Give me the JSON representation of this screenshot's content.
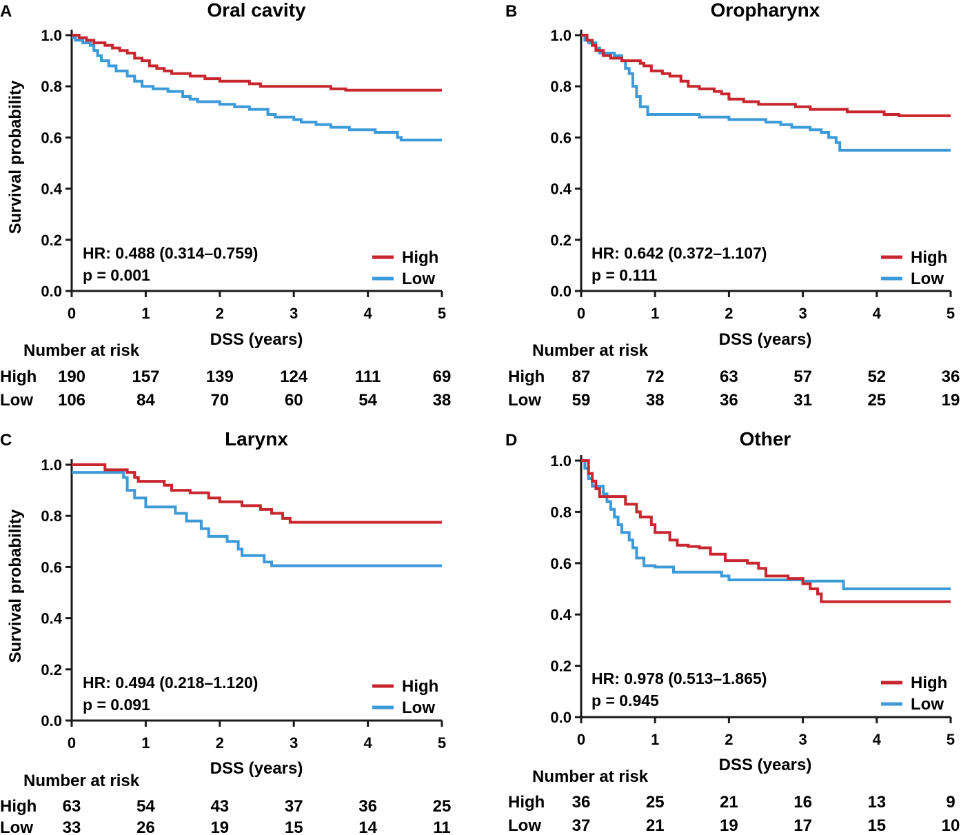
{
  "colors": {
    "high": "#c8262e",
    "low": "#3d9ad9",
    "axis": "#1a1a1a"
  },
  "common": {
    "ylabel": "Survival probability",
    "xlabel": "DSS (years)",
    "risk_title": "Number at risk",
    "high_label": "High",
    "low_label": "Low",
    "x_ticks": [
      "0",
      "1",
      "2",
      "3",
      "4",
      "5"
    ],
    "y_ticks": [
      "0.0",
      "0.2",
      "0.4",
      "0.6",
      "0.8",
      "1.0"
    ]
  },
  "chart_data": [
    {
      "type": "line",
      "panel": "A",
      "title": "Oral cavity",
      "xlabel": "DSS (years)",
      "ylabel": "Survival probability",
      "xlim": [
        0,
        5
      ],
      "ylim": [
        0,
        1
      ],
      "hr_text": "HR: 0.488 (0.314–0.759)",
      "p_text": "p = 0.001",
      "show_ylabel": true,
      "legend_position": "bottom-right",
      "series": [
        {
          "name": "High",
          "steps": [
            [
              0,
              1.0
            ],
            [
              0.1,
              0.99
            ],
            [
              0.2,
              0.98
            ],
            [
              0.3,
              0.97
            ],
            [
              0.45,
              0.96
            ],
            [
              0.55,
              0.95
            ],
            [
              0.65,
              0.94
            ],
            [
              0.75,
              0.93
            ],
            [
              0.85,
              0.91
            ],
            [
              0.95,
              0.9
            ],
            [
              1.05,
              0.88
            ],
            [
              1.15,
              0.87
            ],
            [
              1.25,
              0.86
            ],
            [
              1.35,
              0.85
            ],
            [
              1.6,
              0.84
            ],
            [
              1.8,
              0.83
            ],
            [
              2.0,
              0.82
            ],
            [
              2.4,
              0.81
            ],
            [
              2.55,
              0.8
            ],
            [
              3.5,
              0.79
            ],
            [
              3.7,
              0.785
            ],
            [
              5.0,
              0.785
            ]
          ]
        },
        {
          "name": "Low",
          "steps": [
            [
              0,
              0.99
            ],
            [
              0.05,
              0.98
            ],
            [
              0.15,
              0.97
            ],
            [
              0.25,
              0.96
            ],
            [
              0.3,
              0.94
            ],
            [
              0.35,
              0.92
            ],
            [
              0.4,
              0.9
            ],
            [
              0.5,
              0.88
            ],
            [
              0.6,
              0.86
            ],
            [
              0.75,
              0.84
            ],
            [
              0.85,
              0.82
            ],
            [
              0.95,
              0.8
            ],
            [
              1.1,
              0.79
            ],
            [
              1.3,
              0.78
            ],
            [
              1.5,
              0.76
            ],
            [
              1.6,
              0.75
            ],
            [
              1.7,
              0.74
            ],
            [
              2.0,
              0.73
            ],
            [
              2.2,
              0.72
            ],
            [
              2.4,
              0.71
            ],
            [
              2.65,
              0.69
            ],
            [
              2.75,
              0.68
            ],
            [
              3.0,
              0.67
            ],
            [
              3.1,
              0.66
            ],
            [
              3.3,
              0.65
            ],
            [
              3.5,
              0.64
            ],
            [
              3.75,
              0.63
            ],
            [
              4.1,
              0.62
            ],
            [
              4.35,
              0.62
            ],
            [
              4.4,
              0.6
            ],
            [
              4.45,
              0.59
            ],
            [
              5.0,
              0.59
            ]
          ]
        }
      ],
      "risk": {
        "high": [
          "190",
          "157",
          "139",
          "124",
          "111",
          "69"
        ],
        "low": [
          "106",
          "84",
          "70",
          "60",
          "54",
          "38"
        ]
      }
    },
    {
      "type": "line",
      "panel": "B",
      "title": "Oropharynx",
      "xlabel": "DSS (years)",
      "ylabel": "Survival probability",
      "xlim": [
        0,
        5
      ],
      "ylim": [
        0,
        1
      ],
      "hr_text": "HR: 0.642 (0.372–1.107)",
      "p_text": "p = 0.111",
      "show_ylabel": false,
      "legend_position": "bottom-right",
      "series": [
        {
          "name": "High",
          "steps": [
            [
              0,
              1.0
            ],
            [
              0.08,
              0.98
            ],
            [
              0.15,
              0.96
            ],
            [
              0.2,
              0.94
            ],
            [
              0.3,
              0.92
            ],
            [
              0.4,
              0.91
            ],
            [
              0.55,
              0.9
            ],
            [
              0.8,
              0.89
            ],
            [
              0.85,
              0.88
            ],
            [
              0.95,
              0.86
            ],
            [
              1.1,
              0.85
            ],
            [
              1.2,
              0.84
            ],
            [
              1.35,
              0.82
            ],
            [
              1.45,
              0.8
            ],
            [
              1.6,
              0.79
            ],
            [
              1.8,
              0.78
            ],
            [
              1.9,
              0.77
            ],
            [
              2.0,
              0.75
            ],
            [
              2.2,
              0.74
            ],
            [
              2.4,
              0.73
            ],
            [
              2.9,
              0.72
            ],
            [
              3.1,
              0.71
            ],
            [
              3.6,
              0.7
            ],
            [
              4.1,
              0.69
            ],
            [
              4.3,
              0.685
            ],
            [
              5.0,
              0.685
            ]
          ]
        },
        {
          "name": "Low",
          "steps": [
            [
              0,
              1.0
            ],
            [
              0.05,
              0.98
            ],
            [
              0.1,
              0.97
            ],
            [
              0.2,
              0.95
            ],
            [
              0.25,
              0.93
            ],
            [
              0.45,
              0.92
            ],
            [
              0.55,
              0.9
            ],
            [
              0.6,
              0.87
            ],
            [
              0.65,
              0.85
            ],
            [
              0.7,
              0.8
            ],
            [
              0.75,
              0.76
            ],
            [
              0.8,
              0.72
            ],
            [
              0.9,
              0.69
            ],
            [
              1.0,
              0.69
            ],
            [
              1.6,
              0.68
            ],
            [
              2.0,
              0.67
            ],
            [
              2.5,
              0.66
            ],
            [
              2.7,
              0.65
            ],
            [
              2.85,
              0.64
            ],
            [
              3.1,
              0.63
            ],
            [
              3.25,
              0.62
            ],
            [
              3.35,
              0.6
            ],
            [
              3.45,
              0.58
            ],
            [
              3.5,
              0.55
            ],
            [
              5.0,
              0.55
            ]
          ]
        }
      ],
      "risk": {
        "high": [
          "87",
          "72",
          "63",
          "57",
          "52",
          "36"
        ],
        "low": [
          "59",
          "38",
          "36",
          "31",
          "25",
          "19"
        ]
      }
    },
    {
      "type": "line",
      "panel": "C",
      "title": "Larynx",
      "xlabel": "DSS (years)",
      "ylabel": "Survival probability",
      "xlim": [
        0,
        5
      ],
      "ylim": [
        0,
        1
      ],
      "hr_text": "HR: 0.494 (0.218–1.120)",
      "p_text": "p = 0.091",
      "show_ylabel": true,
      "legend_position": "bottom-right",
      "series": [
        {
          "name": "High",
          "steps": [
            [
              0,
              1.0
            ],
            [
              0.45,
              0.98
            ],
            [
              0.75,
              0.97
            ],
            [
              0.85,
              0.95
            ],
            [
              0.9,
              0.935
            ],
            [
              1.25,
              0.92
            ],
            [
              1.35,
              0.9
            ],
            [
              1.6,
              0.89
            ],
            [
              1.85,
              0.87
            ],
            [
              2.0,
              0.855
            ],
            [
              2.3,
              0.84
            ],
            [
              2.55,
              0.825
            ],
            [
              2.7,
              0.81
            ],
            [
              2.85,
              0.79
            ],
            [
              2.95,
              0.775
            ],
            [
              5.0,
              0.775
            ]
          ]
        },
        {
          "name": "Low",
          "steps": [
            [
              0,
              0.97
            ],
            [
              0.7,
              0.95
            ],
            [
              0.75,
              0.9
            ],
            [
              0.85,
              0.87
            ],
            [
              1.0,
              0.835
            ],
            [
              1.4,
              0.81
            ],
            [
              1.55,
              0.78
            ],
            [
              1.75,
              0.75
            ],
            [
              1.85,
              0.72
            ],
            [
              2.1,
              0.7
            ],
            [
              2.25,
              0.67
            ],
            [
              2.3,
              0.645
            ],
            [
              2.6,
              0.62
            ],
            [
              2.7,
              0.605
            ],
            [
              5.0,
              0.605
            ]
          ]
        }
      ],
      "risk": {
        "high": [
          "63",
          "54",
          "43",
          "37",
          "36",
          "25"
        ],
        "low": [
          "33",
          "26",
          "19",
          "15",
          "14",
          "11"
        ]
      }
    },
    {
      "type": "line",
      "panel": "D",
      "title": "Other",
      "xlabel": "DSS (years)",
      "ylabel": "Survival probability",
      "xlim": [
        0,
        5
      ],
      "ylim": [
        0,
        1
      ],
      "hr_text": "HR: 0.978 (0.513–1.865)",
      "p_text": "p = 0.945",
      "show_ylabel": false,
      "legend_position": "bottom-right",
      "series": [
        {
          "name": "High",
          "steps": [
            [
              0,
              1.0
            ],
            [
              0.1,
              0.95
            ],
            [
              0.15,
              0.92
            ],
            [
              0.2,
              0.89
            ],
            [
              0.25,
              0.86
            ],
            [
              0.6,
              0.83
            ],
            [
              0.75,
              0.8
            ],
            [
              0.8,
              0.78
            ],
            [
              0.95,
              0.75
            ],
            [
              1.0,
              0.72
            ],
            [
              1.2,
              0.69
            ],
            [
              1.3,
              0.67
            ],
            [
              1.45,
              0.665
            ],
            [
              1.6,
              0.66
            ],
            [
              1.75,
              0.635
            ],
            [
              1.95,
              0.61
            ],
            [
              2.25,
              0.6
            ],
            [
              2.4,
              0.58
            ],
            [
              2.5,
              0.55
            ],
            [
              2.8,
              0.54
            ],
            [
              3.0,
              0.52
            ],
            [
              3.1,
              0.5
            ],
            [
              3.2,
              0.48
            ],
            [
              3.25,
              0.45
            ],
            [
              5.0,
              0.45
            ]
          ]
        },
        {
          "name": "Low",
          "steps": [
            [
              0,
              1.0
            ],
            [
              0.05,
              0.97
            ],
            [
              0.1,
              0.93
            ],
            [
              0.15,
              0.9
            ],
            [
              0.3,
              0.87
            ],
            [
              0.35,
              0.84
            ],
            [
              0.4,
              0.81
            ],
            [
              0.45,
              0.78
            ],
            [
              0.5,
              0.75
            ],
            [
              0.55,
              0.72
            ],
            [
              0.65,
              0.69
            ],
            [
              0.7,
              0.66
            ],
            [
              0.75,
              0.62
            ],
            [
              0.85,
              0.59
            ],
            [
              1.0,
              0.585
            ],
            [
              1.25,
              0.565
            ],
            [
              1.9,
              0.55
            ],
            [
              2.0,
              0.535
            ],
            [
              3.0,
              0.53
            ],
            [
              3.15,
              0.53
            ],
            [
              3.55,
              0.5
            ],
            [
              5.0,
              0.5
            ]
          ]
        }
      ],
      "risk": {
        "high": [
          "36",
          "25",
          "21",
          "16",
          "13",
          "9"
        ],
        "low": [
          "37",
          "21",
          "19",
          "17",
          "15",
          "10"
        ]
      }
    }
  ]
}
